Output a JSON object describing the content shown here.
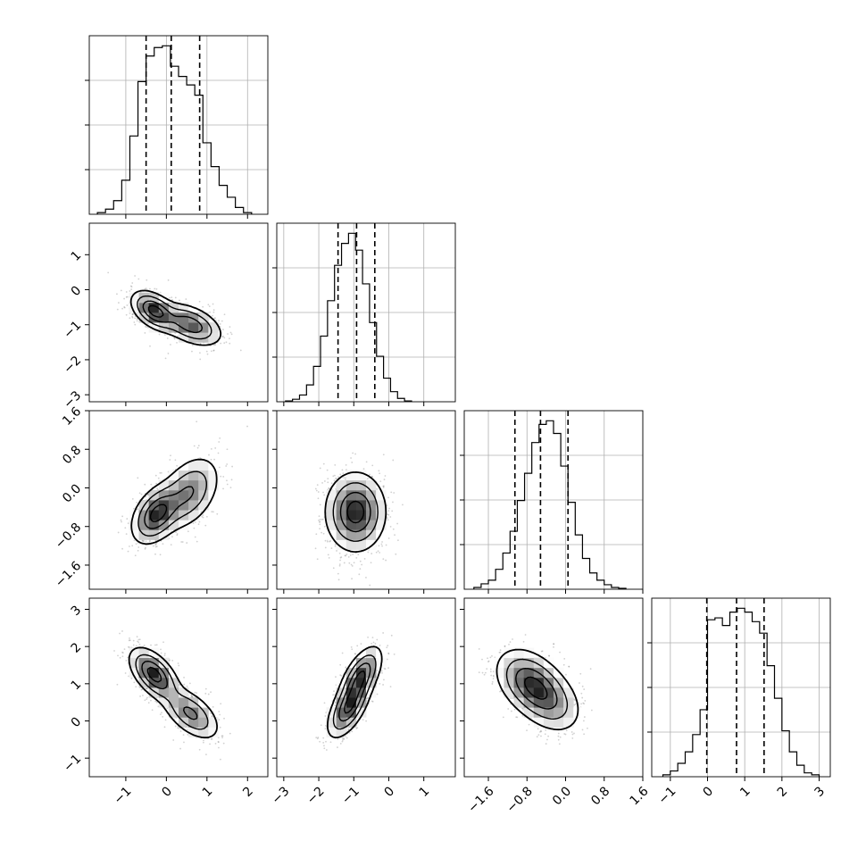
{
  "chart_data": {
    "type": "corner",
    "parameters": [
      {
        "index": 0,
        "range": [
          -1.9,
          2.5
        ],
        "ticks": [
          -1,
          0,
          1,
          2
        ],
        "tick_labels": [
          "−1",
          "0",
          "1",
          "2"
        ]
      },
      {
        "index": 1,
        "range": [
          -3.2,
          1.9
        ],
        "ticks": [
          -3,
          -2,
          -1,
          0,
          1
        ],
        "tick_labels": [
          "−3",
          "−2",
          "−1",
          "0",
          "1"
        ]
      },
      {
        "index": 2,
        "range": [
          -2.1,
          1.6
        ],
        "ticks": [
          -1.6,
          -0.8,
          0.0,
          0.8,
          1.6
        ],
        "tick_labels": [
          "−1.6",
          "−0.8",
          "0.0",
          "0.8",
          "1.6"
        ]
      },
      {
        "index": 3,
        "range": [
          -1.5,
          3.3
        ],
        "ticks": [
          -1,
          0,
          1,
          2,
          3
        ],
        "tick_labels": [
          "−1",
          "0",
          "1",
          "2",
          "3"
        ]
      }
    ],
    "histograms": [
      {
        "param": 0,
        "quantiles": [
          -0.5,
          0.12,
          0.82
        ],
        "bin_edges": [
          -1.7,
          -1.5,
          -1.3,
          -1.1,
          -0.9,
          -0.7,
          -0.5,
          -0.3,
          -0.1,
          0.1,
          0.3,
          0.5,
          0.7,
          0.9,
          1.1,
          1.3,
          1.5,
          1.7,
          1.9,
          2.1
        ],
        "counts": [
          0.01,
          0.03,
          0.08,
          0.2,
          0.46,
          0.78,
          0.93,
          0.98,
          0.99,
          0.87,
          0.81,
          0.76,
          0.7,
          0.42,
          0.28,
          0.17,
          0.1,
          0.04,
          0.01
        ]
      },
      {
        "param": 1,
        "quantiles": [
          -1.45,
          -0.92,
          -0.4
        ],
        "bin_edges": [
          -2.95,
          -2.75,
          -2.55,
          -2.35,
          -2.15,
          -1.95,
          -1.75,
          -1.55,
          -1.35,
          -1.15,
          -0.95,
          -0.75,
          -0.55,
          -0.35,
          -0.15,
          0.05,
          0.25,
          0.45,
          0.65
        ],
        "counts": [
          0.005,
          0.015,
          0.04,
          0.1,
          0.21,
          0.39,
          0.6,
          0.81,
          0.94,
          1.0,
          0.9,
          0.7,
          0.47,
          0.27,
          0.14,
          0.06,
          0.02,
          0.005
        ]
      },
      {
        "param": 2,
        "quantiles": [
          -1.05,
          -0.52,
          0.05
        ],
        "bin_edges": [
          -1.9,
          -1.75,
          -1.6,
          -1.45,
          -1.3,
          -1.15,
          -1.0,
          -0.85,
          -0.7,
          -0.55,
          -0.4,
          -0.25,
          -0.1,
          0.05,
          0.2,
          0.35,
          0.5,
          0.65,
          0.8,
          0.95,
          1.1,
          1.25
        ],
        "counts": [
          0.01,
          0.03,
          0.05,
          0.11,
          0.2,
          0.32,
          0.49,
          0.64,
          0.81,
          0.91,
          0.93,
          0.86,
          0.68,
          0.48,
          0.3,
          0.17,
          0.09,
          0.05,
          0.025,
          0.01,
          0.005
        ]
      },
      {
        "param": 3,
        "quantiles": [
          -0.02,
          0.78,
          1.52
        ],
        "bin_edges": [
          -1.2,
          -1.0,
          -0.8,
          -0.6,
          -0.4,
          -0.2,
          0.0,
          0.2,
          0.4,
          0.6,
          0.8,
          1.0,
          1.2,
          1.4,
          1.6,
          1.8,
          2.0,
          2.2,
          2.4,
          2.6,
          2.8,
          3.0
        ],
        "counts": [
          0.01,
          0.03,
          0.07,
          0.13,
          0.22,
          0.35,
          0.82,
          0.83,
          0.79,
          0.86,
          0.88,
          0.86,
          0.81,
          0.75,
          0.58,
          0.41,
          0.24,
          0.13,
          0.06,
          0.02,
          0.01
        ]
      }
    ],
    "pairs": [
      {
        "x_param": 0,
        "y_param": 1,
        "modes": [
          {
            "x": -0.3,
            "y": -0.6,
            "sx": 0.28,
            "sy": 0.28,
            "w": 0.55
          },
          {
            "x": 0.6,
            "y": -1.0,
            "sx": 0.38,
            "sy": 0.3,
            "w": 0.45
          }
        ],
        "correlation": -0.45
      },
      {
        "x_param": 0,
        "y_param": 2,
        "modes": [
          {
            "x": -0.25,
            "y": -0.55,
            "sx": 0.3,
            "sy": 0.3,
            "w": 0.6
          },
          {
            "x": 0.55,
            "y": -0.1,
            "sx": 0.38,
            "sy": 0.38,
            "w": 0.4
          }
        ],
        "correlation": 0.4
      },
      {
        "x_param": 1,
        "y_param": 2,
        "modes": [
          {
            "x": -0.95,
            "y": -0.5,
            "sx": 0.42,
            "sy": 0.4,
            "w": 1.0
          }
        ],
        "correlation": 0.0
      },
      {
        "x_param": 0,
        "y_param": 3,
        "modes": [
          {
            "x": -0.3,
            "y": 1.25,
            "sx": 0.3,
            "sy": 0.35,
            "w": 0.6
          },
          {
            "x": 0.6,
            "y": 0.2,
            "sx": 0.35,
            "sy": 0.35,
            "w": 0.4
          }
        ],
        "correlation": -0.55
      },
      {
        "x_param": 1,
        "y_param": 3,
        "modes": [
          {
            "x": -1.15,
            "y": 0.35,
            "sx": 0.3,
            "sy": 0.4,
            "w": 0.5
          },
          {
            "x": -0.8,
            "y": 1.2,
            "sx": 0.3,
            "sy": 0.4,
            "w": 0.5
          }
        ],
        "correlation": 0.6
      },
      {
        "x_param": 2,
        "y_param": 3,
        "modes": [
          {
            "x": -0.75,
            "y": 1.05,
            "sx": 0.35,
            "sy": 0.45,
            "w": 0.6
          },
          {
            "x": -0.35,
            "y": 0.55,
            "sx": 0.35,
            "sy": 0.45,
            "w": 0.4
          }
        ],
        "correlation": -0.35
      }
    ],
    "grid": true,
    "colors": {
      "scatter": "#7a7a7a",
      "contour": "#000000",
      "grid": "#b0b0b0"
    }
  }
}
